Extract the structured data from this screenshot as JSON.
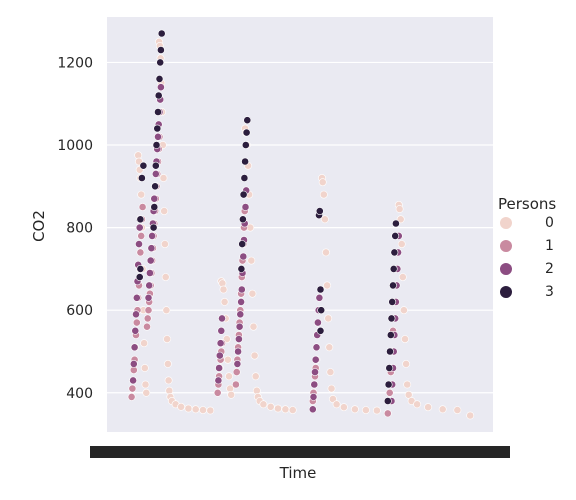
{
  "chart_data": {
    "type": "scatter",
    "title": "",
    "xlabel": "Time",
    "ylabel": "CO2",
    "ylim": [
      305,
      1310
    ],
    "yticks": [
      400,
      600,
      800,
      1000,
      1200
    ],
    "grid": true,
    "legend": {
      "title": "Persons",
      "placement": "right",
      "entries": [
        {
          "label": "0",
          "color": "#f1d4cc"
        },
        {
          "label": "1",
          "color": "#c98aa0"
        },
        {
          "label": "2",
          "color": "#8c4d82"
        },
        {
          "label": "3",
          "color": "#2c1e3e"
        }
      ]
    },
    "x_ticks_note": "dense overlapping tick labels",
    "x_range": [
      0,
      1000
    ],
    "series": [
      {
        "name": "0",
        "points": [
          [
            58,
            975
          ],
          [
            60,
            960
          ],
          [
            62,
            940
          ],
          [
            64,
            920
          ],
          [
            66,
            880
          ],
          [
            68,
            800
          ],
          [
            70,
            700
          ],
          [
            72,
            600
          ],
          [
            74,
            520
          ],
          [
            76,
            460
          ],
          [
            78,
            420
          ],
          [
            80,
            400
          ],
          [
            115,
            1250
          ],
          [
            117,
            1240
          ],
          [
            119,
            1210
          ],
          [
            121,
            1150
          ],
          [
            123,
            1080
          ],
          [
            125,
            1000
          ],
          [
            127,
            920
          ],
          [
            129,
            840
          ],
          [
            131,
            760
          ],
          [
            133,
            680
          ],
          [
            135,
            600
          ],
          [
            137,
            530
          ],
          [
            139,
            470
          ],
          [
            141,
            430
          ],
          [
            143,
            405
          ],
          [
            146,
            390
          ],
          [
            150,
            380
          ],
          [
            160,
            372
          ],
          [
            175,
            366
          ],
          [
            195,
            362
          ],
          [
            215,
            360
          ],
          [
            235,
            358
          ],
          [
            255,
            357
          ],
          [
            285,
            670
          ],
          [
            288,
            665
          ],
          [
            291,
            650
          ],
          [
            294,
            620
          ],
          [
            297,
            580
          ],
          [
            300,
            530
          ],
          [
            303,
            480
          ],
          [
            306,
            440
          ],
          [
            309,
            410
          ],
          [
            312,
            395
          ],
          [
            350,
            1040
          ],
          [
            352,
            1030
          ],
          [
            355,
            1000
          ],
          [
            358,
            950
          ],
          [
            361,
            880
          ],
          [
            364,
            800
          ],
          [
            367,
            720
          ],
          [
            370,
            640
          ],
          [
            373,
            560
          ],
          [
            376,
            490
          ],
          [
            379,
            440
          ],
          [
            382,
            405
          ],
          [
            385,
            390
          ],
          [
            390,
            380
          ],
          [
            400,
            372
          ],
          [
            420,
            366
          ],
          [
            440,
            362
          ],
          [
            460,
            360
          ],
          [
            480,
            358
          ],
          [
            560,
            920
          ],
          [
            562,
            910
          ],
          [
            565,
            880
          ],
          [
            568,
            820
          ],
          [
            571,
            740
          ],
          [
            574,
            660
          ],
          [
            577,
            580
          ],
          [
            580,
            510
          ],
          [
            583,
            450
          ],
          [
            586,
            410
          ],
          [
            590,
            385
          ],
          [
            600,
            372
          ],
          [
            620,
            365
          ],
          [
            650,
            360
          ],
          [
            680,
            358
          ],
          [
            710,
            357
          ],
          [
            770,
            855
          ],
          [
            772,
            845
          ],
          [
            775,
            820
          ],
          [
            778,
            760
          ],
          [
            781,
            680
          ],
          [
            784,
            600
          ],
          [
            787,
            530
          ],
          [
            790,
            470
          ],
          [
            793,
            420
          ],
          [
            797,
            395
          ],
          [
            805,
            380
          ],
          [
            820,
            372
          ],
          [
            850,
            365
          ],
          [
            890,
            360
          ],
          [
            930,
            358
          ],
          [
            965,
            345
          ]
        ]
      },
      {
        "name": "1",
        "points": [
          [
            40,
            390
          ],
          [
            42,
            410
          ],
          [
            44,
            430
          ],
          [
            46,
            455
          ],
          [
            48,
            480
          ],
          [
            50,
            510
          ],
          [
            52,
            540
          ],
          [
            54,
            570
          ],
          [
            56,
            600
          ],
          [
            58,
            630
          ],
          [
            60,
            660
          ],
          [
            62,
            700
          ],
          [
            64,
            740
          ],
          [
            66,
            780
          ],
          [
            68,
            820
          ],
          [
            70,
            850
          ],
          [
            82,
            560
          ],
          [
            84,
            580
          ],
          [
            86,
            600
          ],
          [
            88,
            620
          ],
          [
            90,
            640
          ],
          [
            92,
            660
          ],
          [
            94,
            690
          ],
          [
            96,
            720
          ],
          [
            98,
            750
          ],
          [
            100,
            780
          ],
          [
            102,
            810
          ],
          [
            104,
            840
          ],
          [
            106,
            870
          ],
          [
            108,
            900
          ],
          [
            110,
            930
          ],
          [
            112,
            960
          ],
          [
            114,
            990
          ],
          [
            116,
            1020
          ],
          [
            275,
            400
          ],
          [
            277,
            420
          ],
          [
            279,
            440
          ],
          [
            281,
            460
          ],
          [
            283,
            480
          ],
          [
            285,
            500
          ],
          [
            287,
            520
          ],
          [
            325,
            420
          ],
          [
            327,
            450
          ],
          [
            329,
            480
          ],
          [
            331,
            510
          ],
          [
            333,
            540
          ],
          [
            335,
            570
          ],
          [
            337,
            600
          ],
          [
            339,
            640
          ],
          [
            341,
            680
          ],
          [
            343,
            720
          ],
          [
            345,
            760
          ],
          [
            347,
            800
          ],
          [
            349,
            840
          ],
          [
            535,
            380
          ],
          [
            537,
            400
          ],
          [
            539,
            420
          ],
          [
            541,
            440
          ],
          [
            543,
            460
          ],
          [
            545,
            480
          ],
          [
            740,
            350
          ],
          [
            745,
            400
          ],
          [
            748,
            450
          ],
          [
            751,
            500
          ],
          [
            754,
            550
          ]
        ]
      },
      {
        "name": "2",
        "points": [
          [
            44,
            430
          ],
          [
            46,
            470
          ],
          [
            48,
            510
          ],
          [
            50,
            550
          ],
          [
            52,
            590
          ],
          [
            54,
            630
          ],
          [
            56,
            670
          ],
          [
            58,
            710
          ],
          [
            60,
            760
          ],
          [
            62,
            800
          ],
          [
            86,
            630
          ],
          [
            88,
            660
          ],
          [
            90,
            690
          ],
          [
            92,
            720
          ],
          [
            94,
            750
          ],
          [
            96,
            780
          ],
          [
            98,
            810
          ],
          [
            100,
            840
          ],
          [
            102,
            870
          ],
          [
            104,
            900
          ],
          [
            106,
            930
          ],
          [
            108,
            960
          ],
          [
            110,
            990
          ],
          [
            112,
            1020
          ],
          [
            114,
            1050
          ],
          [
            116,
            1080
          ],
          [
            118,
            1110
          ],
          [
            120,
            1140
          ],
          [
            277,
            430
          ],
          [
            279,
            460
          ],
          [
            281,
            490
          ],
          [
            283,
            520
          ],
          [
            285,
            550
          ],
          [
            287,
            580
          ],
          [
            329,
            470
          ],
          [
            331,
            500
          ],
          [
            333,
            530
          ],
          [
            335,
            560
          ],
          [
            337,
            590
          ],
          [
            339,
            620
          ],
          [
            341,
            650
          ],
          [
            343,
            690
          ],
          [
            345,
            730
          ],
          [
            347,
            770
          ],
          [
            349,
            810
          ],
          [
            351,
            850
          ],
          [
            353,
            890
          ],
          [
            535,
            360
          ],
          [
            537,
            390
          ],
          [
            539,
            420
          ],
          [
            541,
            450
          ],
          [
            543,
            480
          ],
          [
            545,
            510
          ],
          [
            547,
            540
          ],
          [
            549,
            570
          ],
          [
            551,
            600
          ],
          [
            553,
            630
          ],
          [
            750,
            380
          ],
          [
            752,
            420
          ],
          [
            754,
            460
          ],
          [
            756,
            500
          ],
          [
            758,
            540
          ],
          [
            760,
            580
          ],
          [
            762,
            620
          ],
          [
            764,
            660
          ],
          [
            766,
            700
          ],
          [
            768,
            740
          ],
          [
            770,
            780
          ]
        ]
      },
      {
        "name": "3",
        "points": [
          [
            62,
            680
          ],
          [
            64,
            700
          ],
          [
            62,
            820
          ],
          [
            64,
            820
          ],
          [
            68,
            920
          ],
          [
            72,
            950
          ],
          [
            100,
            800
          ],
          [
            102,
            850
          ],
          [
            104,
            900
          ],
          [
            106,
            950
          ],
          [
            108,
            1000
          ],
          [
            110,
            1040
          ],
          [
            112,
            1080
          ],
          [
            114,
            1120
          ],
          [
            116,
            1160
          ],
          [
            118,
            1200
          ],
          [
            120,
            1230
          ],
          [
            122,
            1270
          ],
          [
            340,
            700
          ],
          [
            342,
            760
          ],
          [
            344,
            820
          ],
          [
            346,
            880
          ],
          [
            348,
            920
          ],
          [
            350,
            960
          ],
          [
            352,
            1000
          ],
          [
            354,
            1030
          ],
          [
            356,
            1060
          ],
          [
            552,
            830
          ],
          [
            554,
            840
          ],
          [
            556,
            650
          ],
          [
            558,
            600
          ],
          [
            556,
            550
          ],
          [
            740,
            380
          ],
          [
            742,
            420
          ],
          [
            744,
            460
          ],
          [
            746,
            500
          ],
          [
            748,
            540
          ],
          [
            750,
            580
          ],
          [
            752,
            620
          ],
          [
            754,
            660
          ],
          [
            756,
            700
          ],
          [
            758,
            740
          ],
          [
            760,
            780
          ],
          [
            762,
            810
          ]
        ]
      }
    ]
  }
}
